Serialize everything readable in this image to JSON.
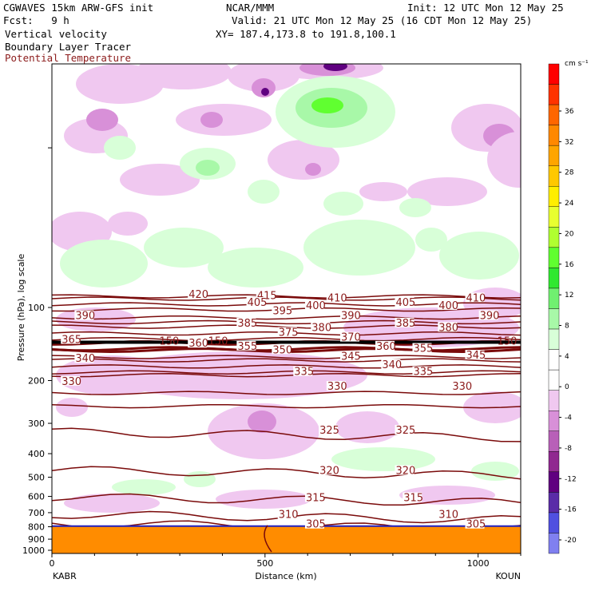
{
  "header": {
    "model": "CGWAVES 15km ARW-GFS init",
    "org": "NCAR/MMM",
    "init": "Init: 12 UTC Mon 12 May 25",
    "fcst": "Fcst:   9 h",
    "valid": "Valid: 21 UTC Mon 12 May 25 (16 CDT Mon 12 May 25)",
    "field1": "Vertical velocity",
    "field2": "Boundary Layer Tracer",
    "field3": "Potential Temperature",
    "xy": "XY= 187.4,173.8 to 191.8,100.1"
  },
  "colors": {
    "theta": "#7a0a0a",
    "terrain": "#ff8c00",
    "field3_text": "#8b1a1a"
  },
  "chart_data": {
    "type": "heatmap",
    "title": "Vertical velocity / Boundary Layer Tracer / Potential Temperature",
    "xlabel": "Distance (km)",
    "ylabel": "Pressure (hPa), log scale",
    "xlim": [
      0,
      1100
    ],
    "ylim": [
      1050,
      10
    ],
    "y_scale": "log",
    "x_ticks": [
      "0",
      "500",
      "1000"
    ],
    "y_ticks": [
      "100",
      "200",
      "300",
      "400",
      "500",
      "600",
      "700",
      "800",
      "900",
      "1000"
    ],
    "x_endpoints": [
      "KABR",
      "KOUN"
    ],
    "colorbar": {
      "unit": "cm s⁻¹",
      "labels": [
        "36",
        "32",
        "28",
        "24",
        "20",
        "16",
        "12",
        "8",
        "4",
        "0",
        "-4",
        "-8",
        "-12",
        "-16",
        "-20"
      ],
      "colors": [
        "#ff0000",
        "#ff3300",
        "#ff6600",
        "#ff8800",
        "#ffa500",
        "#ffc800",
        "#ffee00",
        "#e8ff30",
        "#b0ff30",
        "#60ff30",
        "#30e830",
        "#70f070",
        "#a8f8a8",
        "#d8ffd8",
        "#ffffff",
        "#ffffff",
        "#f0c8f0",
        "#d890d8",
        "#b860b8",
        "#902890",
        "#600080",
        "#5a2ca8",
        "#5050e0",
        "#8080f0"
      ]
    },
    "theta_contours": [
      {
        "value": 305,
        "p": 795
      },
      {
        "value": 310,
        "p": 730
      },
      {
        "value": 315,
        "p": 620
      },
      {
        "value": 320,
        "p": 480
      },
      {
        "value": 325,
        "p": 335
      },
      {
        "value": 330,
        "p": 255
      },
      {
        "value": 335,
        "p": 225
      },
      {
        "value": 340,
        "p": 190
      },
      {
        "value": 345,
        "p": 185
      },
      {
        "value": 350,
        "p": 175
      },
      {
        "value": 355,
        "p": 165
      },
      {
        "value": 360,
        "p": 160
      },
      {
        "value": 365,
        "p": 150
      },
      {
        "value": 370,
        "p": 148
      },
      {
        "value": 375,
        "p": 140
      },
      {
        "value": 380,
        "p": 135
      },
      {
        "value": 385,
        "p": 128
      },
      {
        "value": 390,
        "p": 120
      },
      {
        "value": 395,
        "p": 115
      },
      {
        "value": 400,
        "p": 110
      },
      {
        "value": 405,
        "p": 102
      },
      {
        "value": 410,
        "p": 97
      },
      {
        "value": 415,
        "p": 92
      },
      {
        "value": 420,
        "p": 90
      }
    ],
    "contour_labels": [
      {
        "text": "420",
        "x": 70,
        "p": 90
      },
      {
        "text": "415",
        "x": 105,
        "p": 91
      },
      {
        "text": "410",
        "x": 141,
        "p": 93
      },
      {
        "text": "405",
        "x": 100,
        "p": 97
      },
      {
        "text": "405",
        "x": 176,
        "p": 97
      },
      {
        "text": "410",
        "x": 212,
        "p": 93
      },
      {
        "text": "400",
        "x": 130,
        "p": 100
      },
      {
        "text": "400",
        "x": 198,
        "p": 100
      },
      {
        "text": "390",
        "x": 12,
        "p": 110
      },
      {
        "text": "395",
        "x": 113,
        "p": 105
      },
      {
        "text": "390",
        "x": 148,
        "p": 110
      },
      {
        "text": "390",
        "x": 219,
        "p": 110
      },
      {
        "text": "385",
        "x": 95,
        "p": 118
      },
      {
        "text": "385",
        "x": 176,
        "p": 118
      },
      {
        "text": "380",
        "x": 133,
        "p": 123
      },
      {
        "text": "380",
        "x": 198,
        "p": 123
      },
      {
        "text": "375",
        "x": 116,
        "p": 129
      },
      {
        "text": "365",
        "x": 5,
        "p": 138
      },
      {
        "text": "370",
        "x": 148,
        "p": 135
      },
      {
        "text": "360",
        "x": 70,
        "p": 143
      },
      {
        "text": "355",
        "x": 95,
        "p": 147
      },
      {
        "text": "360",
        "x": 166,
        "p": 147
      },
      {
        "text": "355",
        "x": 185,
        "p": 150
      },
      {
        "text": "350",
        "x": 113,
        "p": 152
      },
      {
        "text": "345",
        "x": 148,
        "p": 162
      },
      {
        "text": "345",
        "x": 212,
        "p": 160
      },
      {
        "text": "340",
        "x": 12,
        "p": 165
      },
      {
        "text": "340",
        "x": 169,
        "p": 175
      },
      {
        "text": "335",
        "x": 124,
        "p": 187
      },
      {
        "text": "335",
        "x": 185,
        "p": 187
      },
      {
        "text": "330",
        "x": 5,
        "p": 205
      },
      {
        "text": "330",
        "x": 141,
        "p": 215
      },
      {
        "text": "330",
        "x": 205,
        "p": 215
      },
      {
        "text": "325",
        "x": 137,
        "p": 326
      },
      {
        "text": "325",
        "x": 176,
        "p": 326
      },
      {
        "text": "320",
        "x": 137,
        "p": 478
      },
      {
        "text": "320",
        "x": 176,
        "p": 478
      },
      {
        "text": "315",
        "x": 130,
        "p": 618
      },
      {
        "text": "315",
        "x": 180,
        "p": 618
      },
      {
        "text": "310",
        "x": 116,
        "p": 725
      },
      {
        "text": "310",
        "x": 198,
        "p": 725
      },
      {
        "text": "305",
        "x": 130,
        "p": 795
      },
      {
        "text": "305",
        "x": 212,
        "p": 795
      }
    ],
    "tropopause_labels": [
      {
        "text": "150",
        "x": 55,
        "p": 140
      },
      {
        "text": "150",
        "x": 80,
        "p": 140
      },
      {
        "text": "150",
        "x": 228,
        "p": 140
      }
    ]
  }
}
